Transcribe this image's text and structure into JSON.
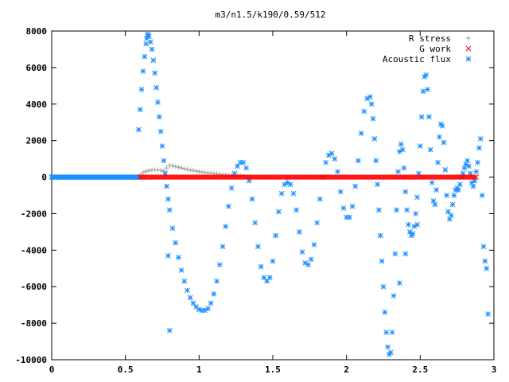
{
  "chart_data": {
    "type": "scatter",
    "title": "m3/n1.5/k190/0.59/512",
    "xlabel": "",
    "ylabel": "",
    "xlim": [
      0,
      3
    ],
    "ylim": [
      -10000,
      8000
    ],
    "x_ticks": [
      0,
      0.5,
      1,
      1.5,
      2,
      2.5,
      3
    ],
    "y_ticks": [
      -10000,
      -8000,
      -6000,
      -4000,
      -2000,
      0,
      2000,
      4000,
      6000,
      8000
    ],
    "x_tick_labels": [
      "0",
      "0.5",
      "1",
      "1.5",
      "2",
      "2.5",
      "3"
    ],
    "y_tick_labels": [
      "-10000",
      "-8000",
      "-6000",
      "-4000",
      "-2000",
      "0",
      "2000",
      "4000",
      "6000",
      "8000"
    ],
    "grid": false,
    "legend_position": "top-right",
    "series": [
      {
        "name": "R stress",
        "color": "#a0a0a0",
        "marker": "plus",
        "points": [
          [
            0.6,
            120
          ],
          [
            0.62,
            250
          ],
          [
            0.64,
            320
          ],
          [
            0.66,
            360
          ],
          [
            0.68,
            390
          ],
          [
            0.7,
            400
          ],
          [
            0.72,
            390
          ],
          [
            0.74,
            370
          ],
          [
            0.76,
            330
          ],
          [
            0.78,
            500
          ],
          [
            0.8,
            640
          ],
          [
            0.82,
            620
          ],
          [
            0.84,
            580
          ],
          [
            0.86,
            540
          ],
          [
            0.88,
            500
          ],
          [
            0.9,
            460
          ],
          [
            0.92,
            420
          ],
          [
            0.94,
            390
          ],
          [
            0.96,
            360
          ],
          [
            0.98,
            330
          ],
          [
            1.0,
            300
          ],
          [
            1.02,
            280
          ],
          [
            1.04,
            260
          ],
          [
            1.06,
            240
          ],
          [
            1.08,
            220
          ],
          [
            1.1,
            200
          ],
          [
            1.12,
            180
          ],
          [
            1.14,
            160
          ],
          [
            1.16,
            140
          ],
          [
            1.18,
            120
          ],
          [
            1.2,
            110
          ],
          [
            1.22,
            100
          ],
          [
            1.24,
            90
          ],
          [
            1.26,
            80
          ],
          [
            1.28,
            70
          ],
          [
            1.3,
            60
          ]
        ]
      },
      {
        "name": "G work",
        "color": "#ff0000",
        "marker": "cross",
        "x_range": [
          0.6,
          2.88
        ],
        "y_value": 0
      },
      {
        "name": "Acoustic flux",
        "color": "#1e90ff",
        "marker": "star",
        "baseline": {
          "x_range": [
            0,
            0.6
          ],
          "y_value": 0
        },
        "points": [
          [
            0.59,
            2600
          ],
          [
            0.6,
            3700
          ],
          [
            0.61,
            4800
          ],
          [
            0.62,
            5800
          ],
          [
            0.63,
            6600
          ],
          [
            0.64,
            7300
          ],
          [
            0.645,
            7600
          ],
          [
            0.65,
            7800
          ],
          [
            0.655,
            7800
          ],
          [
            0.66,
            7700
          ],
          [
            0.67,
            7400
          ],
          [
            0.68,
            7000
          ],
          [
            0.69,
            6400
          ],
          [
            0.7,
            5700
          ],
          [
            0.71,
            4900
          ],
          [
            0.72,
            4100
          ],
          [
            0.73,
            3300
          ],
          [
            0.74,
            2500
          ],
          [
            0.75,
            1700
          ],
          [
            0.76,
            900
          ],
          [
            0.77,
            200
          ],
          [
            0.78,
            -500
          ],
          [
            0.79,
            -1200
          ],
          [
            0.8,
            -1800
          ],
          [
            0.82,
            -2800
          ],
          [
            0.84,
            -3600
          ],
          [
            0.86,
            -4400
          ],
          [
            0.88,
            -5100
          ],
          [
            0.9,
            -5700
          ],
          [
            0.92,
            -6200
          ],
          [
            0.94,
            -6600
          ],
          [
            0.96,
            -6900
          ],
          [
            0.98,
            -7100
          ],
          [
            1.0,
            -7250
          ],
          [
            1.02,
            -7300
          ],
          [
            1.04,
            -7300
          ],
          [
            1.06,
            -7200
          ],
          [
            1.08,
            -6900
          ],
          [
            1.1,
            -6400
          ],
          [
            1.12,
            -5700
          ],
          [
            1.14,
            -4800
          ],
          [
            1.16,
            -3800
          ],
          [
            1.18,
            -2700
          ],
          [
            1.2,
            -1600
          ],
          [
            1.22,
            -600
          ],
          [
            1.24,
            200
          ],
          [
            1.26,
            600
          ],
          [
            1.28,
            800
          ],
          [
            1.3,
            800
          ],
          [
            1.32,
            500
          ],
          [
            1.34,
            -200
          ],
          [
            1.36,
            -1200
          ],
          [
            1.38,
            -2500
          ],
          [
            1.4,
            -3800
          ],
          [
            1.42,
            -4900
          ],
          [
            1.44,
            -5500
          ],
          [
            1.46,
            -5700
          ],
          [
            1.48,
            -5500
          ],
          [
            1.5,
            -4600
          ],
          [
            1.52,
            -3200
          ],
          [
            1.54,
            -1900
          ],
          [
            1.56,
            -900
          ],
          [
            1.58,
            -400
          ],
          [
            1.6,
            -300
          ],
          [
            1.62,
            -400
          ],
          [
            1.64,
            -900
          ],
          [
            1.66,
            -1800
          ],
          [
            1.68,
            -3000
          ],
          [
            1.7,
            -4100
          ],
          [
            1.72,
            -4700
          ],
          [
            1.74,
            -4800
          ],
          [
            1.76,
            -4500
          ],
          [
            1.78,
            -3700
          ],
          [
            1.8,
            -2500
          ],
          [
            1.82,
            -1200
          ],
          [
            1.84,
            0
          ],
          [
            1.86,
            800
          ],
          [
            1.88,
            1200
          ],
          [
            1.9,
            1300
          ],
          [
            1.92,
            1000
          ],
          [
            1.94,
            300
          ],
          [
            1.96,
            -800
          ],
          [
            1.98,
            -1700
          ],
          [
            2.0,
            -2200
          ],
          [
            2.02,
            -2200
          ],
          [
            2.04,
            -1600
          ],
          [
            2.06,
            -500
          ],
          [
            2.08,
            900
          ],
          [
            2.1,
            2400
          ],
          [
            2.12,
            3600
          ],
          [
            2.14,
            4300
          ],
          [
            2.16,
            4400
          ],
          [
            2.17,
            4000
          ],
          [
            2.18,
            3200
          ],
          [
            2.19,
            2100
          ],
          [
            2.2,
            900
          ],
          [
            2.21,
            -400
          ],
          [
            2.22,
            -1800
          ],
          [
            2.23,
            -3200
          ],
          [
            2.24,
            -4600
          ],
          [
            2.25,
            -6000
          ],
          [
            2.26,
            -7400
          ],
          [
            2.27,
            -8500
          ],
          [
            2.28,
            -9300
          ],
          [
            2.29,
            -9700
          ],
          [
            2.3,
            -9600
          ],
          [
            2.31,
            -8500
          ],
          [
            2.32,
            -6500
          ],
          [
            2.33,
            -4200
          ],
          [
            2.34,
            -1800
          ],
          [
            2.35,
            300
          ],
          [
            2.36,
            1400
          ],
          [
            2.37,
            1800
          ],
          [
            2.38,
            1500
          ],
          [
            2.39,
            500
          ],
          [
            2.4,
            -800
          ],
          [
            2.41,
            -1800
          ],
          [
            2.42,
            -2600
          ],
          [
            2.43,
            -3000
          ],
          [
            2.44,
            -3200
          ],
          [
            2.45,
            -3100
          ],
          [
            2.46,
            -2700
          ],
          [
            2.47,
            -2000
          ],
          [
            2.48,
            -1100
          ],
          [
            2.49,
            200
          ],
          [
            2.5,
            1700
          ],
          [
            2.51,
            3300
          ],
          [
            2.52,
            4700
          ],
          [
            2.53,
            5500
          ],
          [
            2.54,
            5600
          ],
          [
            2.55,
            4800
          ],
          [
            2.56,
            3300
          ],
          [
            2.57,
            1500
          ],
          [
            2.58,
            -300
          ],
          [
            2.59,
            -1300
          ],
          [
            2.6,
            -1500
          ],
          [
            2.61,
            -700
          ],
          [
            2.62,
            800
          ],
          [
            2.63,
            2200
          ],
          [
            2.64,
            2900
          ],
          [
            2.65,
            2800
          ],
          [
            2.66,
            1900
          ],
          [
            2.67,
            400
          ],
          [
            2.68,
            -1000
          ],
          [
            2.69,
            -1900
          ],
          [
            2.7,
            -2300
          ],
          [
            2.71,
            -2100
          ],
          [
            2.72,
            -1500
          ],
          [
            2.73,
            -1000
          ],
          [
            2.74,
            -700
          ],
          [
            2.75,
            -600
          ],
          [
            2.76,
            -700
          ],
          [
            2.77,
            -400
          ],
          [
            2.78,
            0
          ],
          [
            2.79,
            200
          ],
          [
            2.8,
            500
          ],
          [
            2.81,
            700
          ],
          [
            2.82,
            900
          ],
          [
            2.83,
            600
          ],
          [
            2.84,
            200
          ],
          [
            2.85,
            -300
          ],
          [
            2.86,
            -500
          ],
          [
            2.87,
            -200
          ],
          [
            2.88,
            300
          ],
          [
            2.89,
            800
          ],
          [
            2.9,
            1600
          ],
          [
            2.91,
            2100
          ],
          [
            2.92,
            -1000
          ],
          [
            2.93,
            -3800
          ],
          [
            2.94,
            -4600
          ],
          [
            2.95,
            -5000
          ],
          [
            2.96,
            -7500
          ],
          [
            0.79,
            -4300
          ],
          [
            0.8,
            -8400
          ],
          [
            2.48,
            -2600
          ],
          [
            2.36,
            -5800
          ],
          [
            2.4,
            -4200
          ]
        ]
      }
    ]
  }
}
